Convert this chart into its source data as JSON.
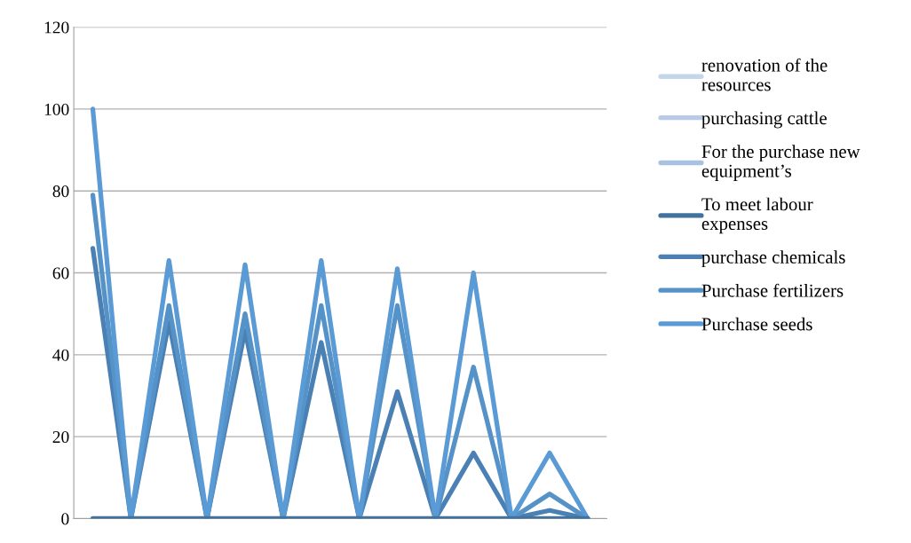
{
  "chart_data": {
    "type": "line",
    "categories": [
      null,
      null,
      null,
      null,
      null,
      null,
      null,
      null,
      null,
      null,
      null,
      null,
      null,
      null
    ],
    "series": [
      {
        "name": "renovation of the resources",
        "color": "#c5d5ea",
        "values": [
          null,
          null,
          null,
          null,
          null,
          null,
          null,
          null,
          null,
          null,
          null,
          null,
          null,
          null
        ]
      },
      {
        "name": "purchasing cattle",
        "color": "#b7cbe6",
        "values": [
          null,
          null,
          null,
          null,
          null,
          null,
          null,
          null,
          null,
          null,
          null,
          null,
          null,
          null
        ]
      },
      {
        "name": "For the purchase new equipment’s",
        "color": "#a9c2e2",
        "values": [
          null,
          null,
          null,
          null,
          null,
          null,
          null,
          null,
          null,
          null,
          null,
          null,
          null,
          null
        ]
      },
      {
        "name": "To meet labour expenses",
        "color": "#41719c",
        "values": [
          0,
          0,
          0,
          0,
          0,
          0,
          0,
          0,
          0,
          0,
          0,
          0,
          0,
          0
        ]
      },
      {
        "name": "purchase chemicals",
        "color": "#4a80b4",
        "values": [
          66,
          0,
          48,
          0,
          46,
          0,
          43,
          0,
          31,
          0,
          16,
          0,
          2,
          0
        ]
      },
      {
        "name": "Purchase fertilizers",
        "color": "#5592c8",
        "values": [
          79,
          0,
          52,
          0,
          50,
          0,
          52,
          0,
          52,
          0,
          37,
          0,
          6,
          0
        ]
      },
      {
        "name": "Purchase seeds",
        "color": "#5b9bd5",
        "values": [
          100,
          0,
          63,
          0,
          62,
          0,
          63,
          0,
          61,
          0,
          60,
          0,
          16,
          0
        ]
      }
    ],
    "ylim": [
      0,
      120
    ],
    "yticks": [
      0,
      20,
      40,
      60,
      80,
      100,
      120
    ],
    "grid": "y",
    "legend": "right",
    "marker": "none",
    "line_style": "solid",
    "tick_labels": "y"
  }
}
